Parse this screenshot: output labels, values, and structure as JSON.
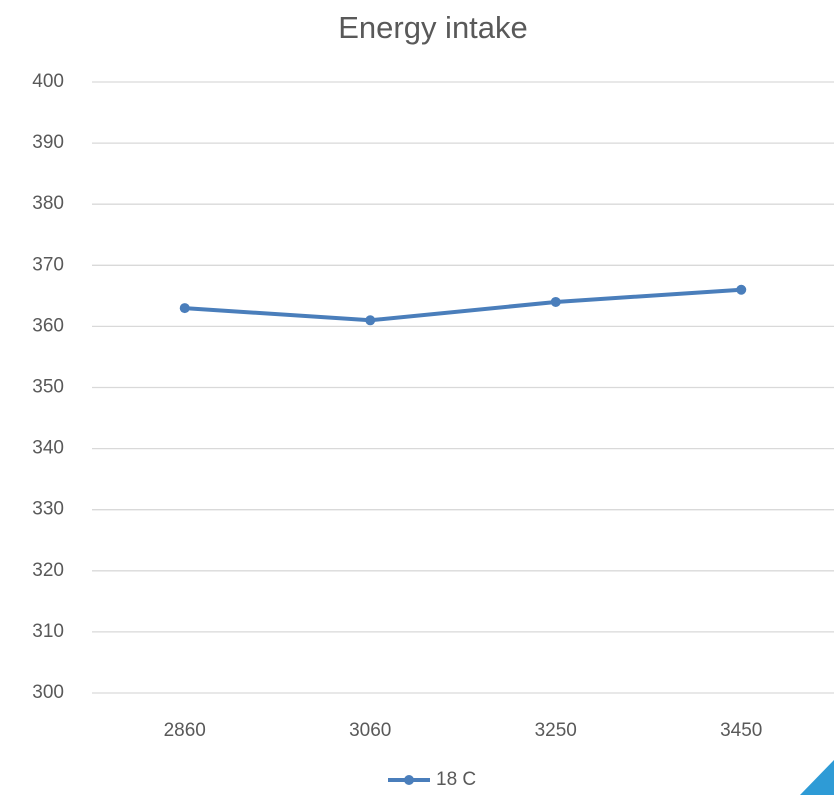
{
  "chart_data": {
    "type": "line",
    "title": "Energy intake",
    "categories": [
      "2860",
      "3060",
      "3250",
      "3450"
    ],
    "series": [
      {
        "name": "18 C",
        "color": "#4a7ebb",
        "values": [
          363,
          361,
          364,
          366
        ]
      }
    ],
    "ylim": [
      300,
      400
    ],
    "yticks": [
      300,
      310,
      320,
      330,
      340,
      350,
      360,
      370,
      380,
      390,
      400
    ],
    "grid": true,
    "legend": "bottom"
  }
}
